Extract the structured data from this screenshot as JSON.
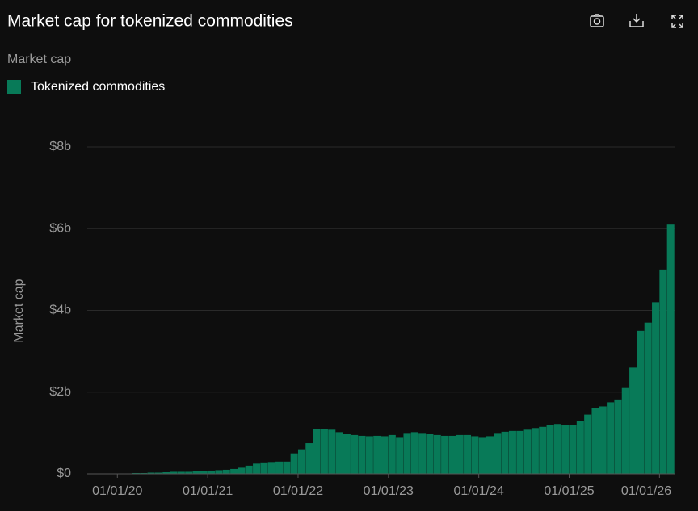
{
  "chart_data": {
    "type": "bar",
    "title": "Market cap for tokenized commodities",
    "subtitle": "Market cap",
    "y_label": "Market cap",
    "x": [
      "01/09/19",
      "01/10/19",
      "01/11/19",
      "01/12/19",
      "01/01/20",
      "01/02/20",
      "01/03/20",
      "01/04/20",
      "01/05/20",
      "01/06/20",
      "01/07/20",
      "01/08/20",
      "01/09/20",
      "01/10/20",
      "01/11/20",
      "01/12/20",
      "01/01/21",
      "01/02/21",
      "01/03/21",
      "01/04/21",
      "01/05/21",
      "01/06/21",
      "01/07/21",
      "01/08/21",
      "01/09/21",
      "01/10/21",
      "01/11/21",
      "01/12/21",
      "01/01/22",
      "01/02/22",
      "01/03/22",
      "01/04/22",
      "01/05/22",
      "01/06/22",
      "01/07/22",
      "01/08/22",
      "01/09/22",
      "01/10/22",
      "01/11/22",
      "01/12/22",
      "01/01/23",
      "01/02/23",
      "01/03/23",
      "01/04/23",
      "01/05/23",
      "01/06/23",
      "01/07/23",
      "01/08/23",
      "01/09/23",
      "01/10/23",
      "01/11/23",
      "01/12/23",
      "01/01/24",
      "01/02/24",
      "01/03/24",
      "01/04/24",
      "01/05/24",
      "01/06/24",
      "01/07/24",
      "01/08/24",
      "01/09/24",
      "01/10/24",
      "01/11/24",
      "01/12/24",
      "01/01/25",
      "01/02/25",
      "01/03/25",
      "01/04/25",
      "01/05/25",
      "01/06/25",
      "01/07/25",
      "01/08/25",
      "01/09/25",
      "01/10/25",
      "01/11/25",
      "01/12/25",
      "01/01/26",
      "01/02/26"
    ],
    "series": [
      {
        "name": "Tokenized commodities",
        "color": "#087a58",
        "values": [
          0,
          0,
          0,
          0.01,
          0.01,
          0.01,
          0.02,
          0.02,
          0.03,
          0.03,
          0.04,
          0.05,
          0.05,
          0.05,
          0.06,
          0.07,
          0.08,
          0.09,
          0.1,
          0.12,
          0.15,
          0.2,
          0.25,
          0.28,
          0.29,
          0.3,
          0.3,
          0.5,
          0.6,
          0.75,
          1.1,
          1.1,
          1.08,
          1.02,
          0.98,
          0.95,
          0.93,
          0.92,
          0.93,
          0.92,
          0.95,
          0.9,
          1.0,
          1.02,
          1.0,
          0.97,
          0.95,
          0.93,
          0.93,
          0.95,
          0.95,
          0.92,
          0.9,
          0.92,
          1.0,
          1.03,
          1.05,
          1.05,
          1.08,
          1.12,
          1.15,
          1.2,
          1.22,
          1.2,
          1.2,
          1.3,
          1.45,
          1.6,
          1.65,
          1.75,
          1.82,
          2.1,
          2.6,
          3.5,
          3.7,
          4.2,
          5.0,
          6.1
        ]
      }
    ],
    "xlim": [
      "01/09/19",
      "01/03/26"
    ],
    "xticks": [
      "01/01/20",
      "01/01/21",
      "01/01/22",
      "01/01/23",
      "01/01/24",
      "01/01/25",
      "01/01/26"
    ],
    "ylim": [
      0,
      8
    ],
    "yticks": [
      {
        "value": 0,
        "label": "$0"
      },
      {
        "value": 2,
        "label": "$2b"
      },
      {
        "value": 4,
        "label": "$4b"
      },
      {
        "value": 6,
        "label": "$6b"
      },
      {
        "value": 8,
        "label": "$8b"
      }
    ],
    "grid": true
  }
}
